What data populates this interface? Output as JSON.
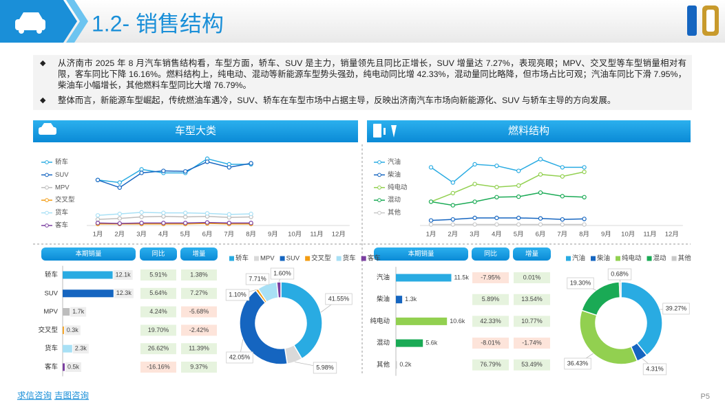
{
  "header": {
    "title": "1.2- 销售结构"
  },
  "bullets": [
    "从济南市 2025 年 8 月汽车销售结构看，车型方面，轿车、SUV 是主力，销量领先且同比正增长，SUV 增量达 7.27%，表现亮眼；MPV、交叉型等车型销量相对有限，客车同比下降 16.16%。燃料结构上，纯电动、混动等新能源车型势头强劲，纯电动同比增 42.33%，混动量同比略降，但市场占比可观；汽油车同比下滑 7.95%，柴油车小幅增长，其他燃料车型同比大增 76.79%。",
    "整体而言，新能源车型崛起，传统燃油车遇冷，SUV、轿车在车型市场中占据主导，反映出济南汽车市场向新能源化、SUV 与轿车主导的方向发展。"
  ],
  "panels": [
    {
      "title": "车型大类"
    },
    {
      "title": "燃料结构"
    }
  ],
  "chart_data": [
    {
      "type": "line",
      "ylim": [
        0,
        14
      ],
      "categories": [
        "1月",
        "2月",
        "3月",
        "4月",
        "5月",
        "6月",
        "7月",
        "8月",
        "9月",
        "10月",
        "11月",
        "12月"
      ],
      "series": [
        {
          "name": "轿车",
          "color": "#29abe2",
          "values": [
            9.0,
            8.5,
            11.1,
            10.4,
            10.4,
            13.2,
            12.1,
            12.1,
            null,
            null,
            null,
            null
          ]
        },
        {
          "name": "SUV",
          "color": "#1565c0",
          "values": [
            9.0,
            7.5,
            10.4,
            10.8,
            10.7,
            12.6,
            11.5,
            12.3,
            null,
            null,
            null,
            null
          ]
        },
        {
          "name": "MPV",
          "color": "#bdbdbd",
          "values": [
            1.2,
            1.4,
            1.7,
            1.8,
            1.7,
            1.8,
            1.6,
            1.7,
            null,
            null,
            null,
            null
          ]
        },
        {
          "name": "交叉型",
          "color": "#f39c12",
          "values": [
            0.3,
            0.3,
            0.3,
            0.3,
            0.3,
            0.4,
            0.3,
            0.3,
            null,
            null,
            null,
            null
          ]
        },
        {
          "name": "货车",
          "color": "#a8e0f5",
          "values": [
            2.0,
            2.3,
            2.6,
            2.5,
            2.5,
            2.4,
            2.2,
            2.3,
            null,
            null,
            null,
            null
          ]
        },
        {
          "name": "客车",
          "color": "#7b3fa0",
          "values": [
            0.5,
            0.4,
            0.5,
            0.5,
            0.5,
            0.6,
            0.5,
            0.5,
            null,
            null,
            null,
            null
          ]
        }
      ]
    },
    {
      "type": "line",
      "ylim": [
        0,
        14
      ],
      "categories": [
        "1月",
        "2月",
        "3月",
        "4月",
        "5月",
        "6月",
        "7月",
        "8月",
        "9月",
        "10月",
        "11月",
        "12月"
      ],
      "series": [
        {
          "name": "汽油",
          "color": "#29abe2",
          "values": [
            11.5,
            8.5,
            12.1,
            11.8,
            10.8,
            13.1,
            11.5,
            11.5,
            null,
            null,
            null,
            null
          ]
        },
        {
          "name": "柴油",
          "color": "#1565c0",
          "values": [
            1.0,
            1.2,
            1.5,
            1.5,
            1.5,
            1.4,
            1.2,
            1.3,
            null,
            null,
            null,
            null
          ]
        },
        {
          "name": "纯电动",
          "color": "#92d050",
          "values": [
            4.7,
            6.4,
            8.2,
            7.6,
            7.9,
            10.1,
            9.7,
            10.6,
            null,
            null,
            null,
            null
          ]
        },
        {
          "name": "混动",
          "color": "#1aaa55",
          "values": [
            4.7,
            4.0,
            4.7,
            5.6,
            5.7,
            6.5,
            5.8,
            5.6,
            null,
            null,
            null,
            null
          ]
        },
        {
          "name": "其他",
          "color": "#c8c8c8",
          "values": [
            0.2,
            0.2,
            0.2,
            0.2,
            0.2,
            0.2,
            0.2,
            0.2,
            null,
            null,
            null,
            null
          ]
        }
      ]
    },
    {
      "type": "bar",
      "orientation": "horizontal",
      "xlim": [
        0,
        15
      ],
      "columns": [
        "本期销量",
        "同比",
        "增量"
      ],
      "categories": [
        "轿车",
        "SUV",
        "MPV",
        "交叉型",
        "货车",
        "客车"
      ],
      "values": [
        12.1,
        12.3,
        1.7,
        0.3,
        2.3,
        0.5
      ],
      "value_labels": [
        "12.1k",
        "12.3k",
        "1.7k",
        "0.3k",
        "2.3k",
        "0.5k"
      ],
      "colors": [
        "#29abe2",
        "#1565c0",
        "#bdbdbd",
        "#f39c12",
        "#a8e0f5",
        "#7b3fa0"
      ],
      "yoy": [
        "5.91%",
        "5.64%",
        "4.24%",
        "19.70%",
        "26.62%",
        "-16.16%"
      ],
      "increment": [
        "1.38%",
        "7.27%",
        "-5.68%",
        "-2.42%",
        "11.39%",
        "9.37%"
      ]
    },
    {
      "type": "bar",
      "orientation": "horizontal",
      "xlim": [
        0,
        16
      ],
      "columns": [
        "本期销量",
        "同比",
        "增量"
      ],
      "categories": [
        "汽油",
        "柴油",
        "纯电动",
        "混动",
        "其他"
      ],
      "values": [
        11.5,
        1.3,
        10.6,
        5.6,
        0.2
      ],
      "value_labels": [
        "11.5k",
        "1.3k",
        "10.6k",
        "5.6k",
        "0.2k"
      ],
      "colors": [
        "#29abe2",
        "#1565c0",
        "#92d050",
        "#1aaa55",
        "#c8c8c8"
      ],
      "yoy": [
        "-7.95%",
        "5.89%",
        "42.33%",
        "-8.01%",
        "76.79%"
      ],
      "increment": [
        "0.01%",
        "13.54%",
        "10.77%",
        "-1.74%",
        "53.49%"
      ]
    },
    {
      "type": "pie",
      "categories": [
        "轿车",
        "MPV",
        "SUV",
        "交叉型",
        "货车",
        "客车"
      ],
      "values": [
        41.55,
        5.98,
        42.05,
        1.1,
        7.71,
        1.6
      ],
      "value_labels": [
        "41.55%",
        "5.98%",
        "42.05%",
        "1.10%",
        "7.71%",
        "1.60%"
      ],
      "colors": [
        "#29abe2",
        "#d9d9d9",
        "#1565c0",
        "#f39c12",
        "#a8e0f5",
        "#7b3fa0"
      ]
    },
    {
      "type": "pie",
      "categories": [
        "汽油",
        "柴油",
        "纯电动",
        "混动",
        "其他"
      ],
      "values": [
        39.27,
        4.31,
        36.43,
        19.3,
        0.68
      ],
      "value_labels": [
        "39.27%",
        "4.31%",
        "36.43%",
        "19.30%",
        "0.68%"
      ],
      "colors": [
        "#29abe2",
        "#1565c0",
        "#92d050",
        "#1aaa55",
        "#c8c8c8"
      ]
    }
  ],
  "footer": {
    "links": [
      "求信咨询",
      "吉图咨询"
    ],
    "page": "P5"
  }
}
